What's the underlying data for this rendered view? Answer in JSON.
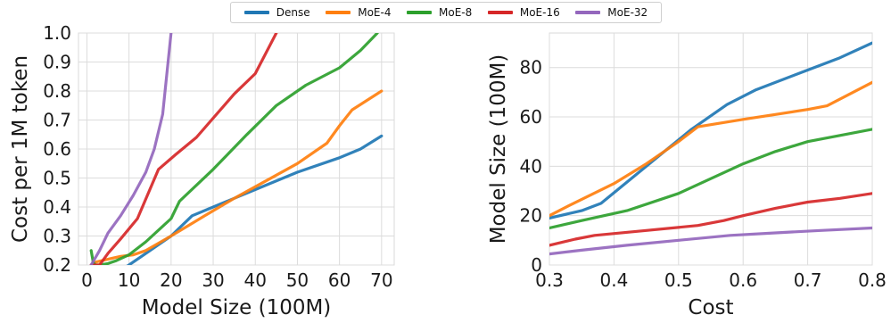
{
  "legend": {
    "entries": [
      {
        "name": "Dense",
        "color": "#1f77b4"
      },
      {
        "name": "MoE-4",
        "color": "#ff7f0e"
      },
      {
        "name": "MoE-8",
        "color": "#2ca02c"
      },
      {
        "name": "MoE-16",
        "color": "#d62728"
      },
      {
        "name": "MoE-32",
        "color": "#9467bd"
      }
    ]
  },
  "chart_data": [
    {
      "type": "line",
      "xlabel": "Model Size (100M)",
      "ylabel": "Cost per 1M token",
      "xlim": [
        -2,
        73
      ],
      "ylim": [
        0.2,
        1.0
      ],
      "xticks": [
        0,
        10,
        20,
        30,
        40,
        50,
        60,
        70
      ],
      "yticks": [
        0.2,
        0.3,
        0.4,
        0.5,
        0.6,
        0.7,
        0.8,
        0.9,
        1.0
      ],
      "xtick_labels": [
        "0",
        "10",
        "20",
        "30",
        "40",
        "50",
        "60",
        "70"
      ],
      "ytick_labels": [
        "0.2",
        "0.3",
        "0.4",
        "0.5",
        "0.6",
        "0.7",
        "0.8",
        "0.9",
        "1.0"
      ],
      "grid": true,
      "series": [
        {
          "name": "Dense",
          "color": "#1f77b4",
          "points": [
            [
              1,
              0.12
            ],
            [
              10,
              0.2
            ],
            [
              15,
              0.25
            ],
            [
              20,
              0.3
            ],
            [
              25,
              0.37
            ],
            [
              30,
              0.4
            ],
            [
              40,
              0.46
            ],
            [
              50,
              0.52
            ],
            [
              60,
              0.57
            ],
            [
              65,
              0.6
            ],
            [
              70,
              0.645
            ]
          ]
        },
        {
          "name": "MoE-4",
          "color": "#ff7f0e",
          "points": [
            [
              1,
              0.2
            ],
            [
              2,
              0.21
            ],
            [
              5,
              0.22
            ],
            [
              8,
              0.23
            ],
            [
              11,
              0.235
            ],
            [
              14,
              0.25
            ],
            [
              20,
              0.3
            ],
            [
              28,
              0.37
            ],
            [
              35,
              0.43
            ],
            [
              45,
              0.51
            ],
            [
              50,
              0.55
            ],
            [
              57,
              0.62
            ],
            [
              60,
              0.68
            ],
            [
              63,
              0.735
            ],
            [
              70,
              0.8
            ]
          ]
        },
        {
          "name": "MoE-8",
          "color": "#2ca02c",
          "points": [
            [
              1,
              0.25
            ],
            [
              1.5,
              0.21
            ],
            [
              2,
              0.2
            ],
            [
              3,
              0.2
            ],
            [
              5,
              0.205
            ],
            [
              7,
              0.215
            ],
            [
              10,
              0.235
            ],
            [
              14,
              0.28
            ],
            [
              20,
              0.36
            ],
            [
              22,
              0.42
            ],
            [
              30,
              0.53
            ],
            [
              38,
              0.65
            ],
            [
              45,
              0.75
            ],
            [
              52,
              0.82
            ],
            [
              60,
              0.88
            ],
            [
              65,
              0.94
            ],
            [
              69,
              1.0
            ]
          ]
        },
        {
          "name": "MoE-16",
          "color": "#d62728",
          "points": [
            [
              1,
              0.2
            ],
            [
              3,
              0.2
            ],
            [
              5,
              0.24
            ],
            [
              8,
              0.29
            ],
            [
              12,
              0.36
            ],
            [
              17,
              0.53
            ],
            [
              21,
              0.58
            ],
            [
              26,
              0.64
            ],
            [
              35,
              0.79
            ],
            [
              40,
              0.86
            ],
            [
              45,
              1.0
            ]
          ]
        },
        {
          "name": "MoE-32",
          "color": "#9467bd",
          "points": [
            [
              1,
              0.2
            ],
            [
              3,
              0.25
            ],
            [
              5,
              0.31
            ],
            [
              8,
              0.37
            ],
            [
              11,
              0.44
            ],
            [
              14,
              0.52
            ],
            [
              16,
              0.6
            ],
            [
              18,
              0.72
            ],
            [
              20,
              1.0
            ]
          ]
        }
      ]
    },
    {
      "type": "line",
      "xlabel": "Cost",
      "ylabel": "Model Size (100M)",
      "xlim": [
        0.3,
        0.8
      ],
      "ylim": [
        0,
        94
      ],
      "xticks": [
        0.3,
        0.4,
        0.5,
        0.6,
        0.7,
        0.8
      ],
      "yticks": [
        0,
        20,
        40,
        60,
        80
      ],
      "xtick_labels": [
        "0.3",
        "0.4",
        "0.5",
        "0.6",
        "0.7",
        "0.8"
      ],
      "ytick_labels": [
        "0",
        "20",
        "40",
        "60",
        "80"
      ],
      "grid": true,
      "series": [
        {
          "color": "#1f77b4",
          "points": [
            [
              0.3,
              19
            ],
            [
              0.35,
              22
            ],
            [
              0.38,
              25
            ],
            [
              0.45,
              40
            ],
            [
              0.52,
              55
            ],
            [
              0.575,
              65
            ],
            [
              0.62,
              71
            ],
            [
              0.7,
              79
            ],
            [
              0.75,
              84
            ],
            [
              0.8,
              90
            ]
          ]
        },
        {
          "color": "#ff7f0e",
          "points": [
            [
              0.3,
              20
            ],
            [
              0.33,
              24
            ],
            [
              0.4,
              33
            ],
            [
              0.45,
              41
            ],
            [
              0.5,
              50
            ],
            [
              0.53,
              56
            ],
            [
              0.6,
              59
            ],
            [
              0.65,
              61
            ],
            [
              0.7,
              63
            ],
            [
              0.73,
              64.5
            ],
            [
              0.8,
              74
            ]
          ]
        },
        {
          "color": "#2ca02c",
          "points": [
            [
              0.3,
              15
            ],
            [
              0.35,
              18
            ],
            [
              0.42,
              22
            ],
            [
              0.5,
              29
            ],
            [
              0.55,
              35
            ],
            [
              0.6,
              41
            ],
            [
              0.65,
              46
            ],
            [
              0.7,
              50
            ],
            [
              0.75,
              52.5
            ],
            [
              0.8,
              55
            ]
          ]
        },
        {
          "color": "#d62728",
          "points": [
            [
              0.3,
              8
            ],
            [
              0.34,
              10.5
            ],
            [
              0.37,
              12
            ],
            [
              0.45,
              14
            ],
            [
              0.53,
              16
            ],
            [
              0.57,
              18
            ],
            [
              0.6,
              20
            ],
            [
              0.65,
              23
            ],
            [
              0.7,
              25.5
            ],
            [
              0.75,
              27
            ],
            [
              0.8,
              29
            ]
          ]
        },
        {
          "color": "#9467bd",
          "points": [
            [
              0.3,
              4.5
            ],
            [
              0.35,
              6
            ],
            [
              0.42,
              8
            ],
            [
              0.5,
              10
            ],
            [
              0.58,
              12
            ],
            [
              0.65,
              13
            ],
            [
              0.72,
              14
            ],
            [
              0.8,
              15
            ]
          ]
        }
      ]
    }
  ]
}
